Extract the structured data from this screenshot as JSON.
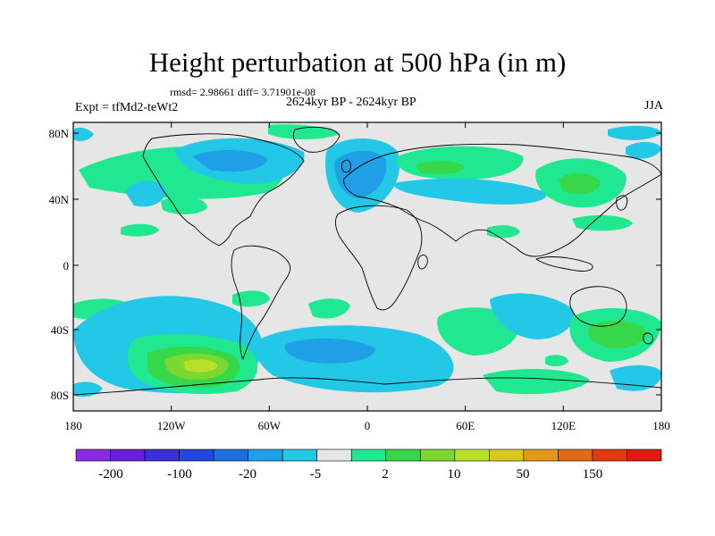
{
  "title": "Height perturbation at 500 hPa (in m)",
  "stats": "rmsd= 2.98661 diff= 3.71901e-08",
  "period": "2624kyr BP - 2624kyr BP",
  "expt": "Expt = tfMd2-teWt2",
  "season": "JJA",
  "axes": {
    "lat_labels": [
      "80N",
      "40N",
      "0",
      "40S",
      "80S"
    ],
    "lon_labels": [
      "180",
      "120W",
      "60W",
      "0",
      "60E",
      "120E",
      "180"
    ]
  },
  "colorbar": {
    "labels": [
      "-200",
      "-100",
      "-20",
      "-5",
      "2",
      "10",
      "50",
      "150"
    ],
    "colors": [
      "#8a2be2",
      "#6a1fd6",
      "#3a2fd8",
      "#2048e0",
      "#1d6fe0",
      "#1fa0e6",
      "#22c8e6",
      "#e6e6e6",
      "#1fe890",
      "#36d84a",
      "#7ad830",
      "#b8e02a",
      "#d8c81e",
      "#e09a18",
      "#e06a14",
      "#e03a10",
      "#e01a10"
    ]
  },
  "map": {
    "background_color": "#e6e6e6",
    "coastline_color": "#000000"
  }
}
